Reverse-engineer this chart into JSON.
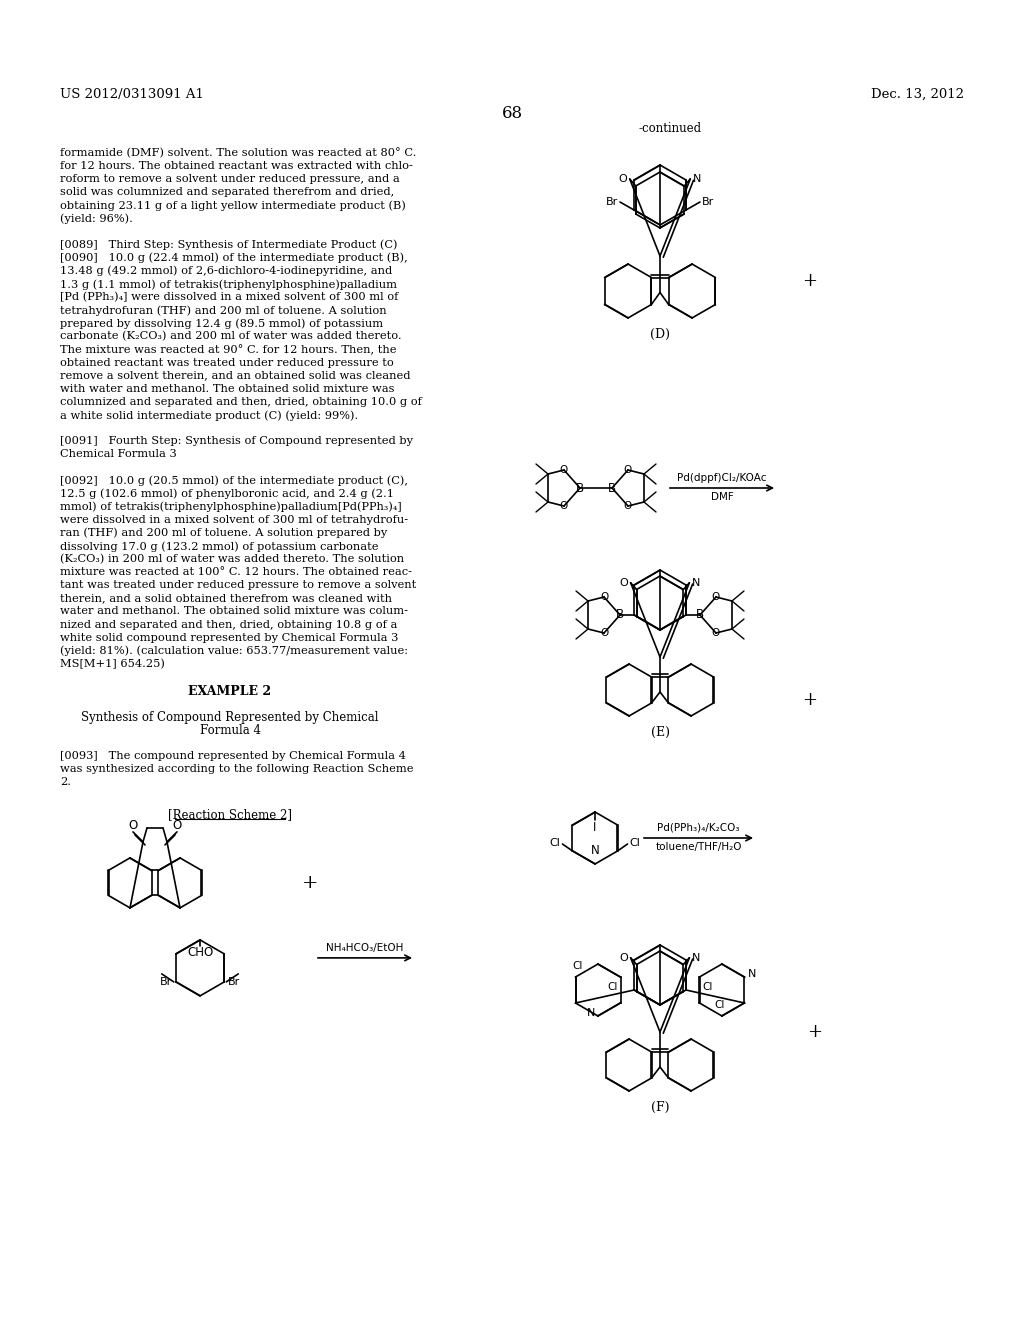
{
  "patent_number": "US 2012/0313091 A1",
  "patent_date": "Dec. 13, 2012",
  "page_number": "68",
  "left_lines": [
    "formamide (DMF) solvent. The solution was reacted at 80° C.",
    "for 12 hours. The obtained reactant was extracted with chlo-",
    "roform to remove a solvent under reduced pressure, and a",
    "solid was columnized and separated therefrom and dried,",
    "obtaining 23.11 g of a light yellow intermediate product (B)",
    "(yield: 96%).",
    "",
    "[0089]   Third Step: Synthesis of Intermediate Product (C)",
    "[0090]   10.0 g (22.4 mmol) of the intermediate product (B),",
    "13.48 g (49.2 mmol) of 2,6-dichloro-4-iodinepyridine, and",
    "1.3 g (1.1 mmol) of tetrakis(triphenylphosphine)palladium",
    "[Pd (PPh₃)₄] were dissolved in a mixed solvent of 300 ml of",
    "tetrahydrofuran (THF) and 200 ml of toluene. A solution",
    "prepared by dissolving 12.4 g (89.5 mmol) of potassium",
    "carbonate (K₂CO₃) and 200 ml of water was added thereto.",
    "The mixture was reacted at 90° C. for 12 hours. Then, the",
    "obtained reactant was treated under reduced pressure to",
    "remove a solvent therein, and an obtained solid was cleaned",
    "with water and methanol. The obtained solid mixture was",
    "columnized and separated and then, dried, obtaining 10.0 g of",
    "a white solid intermediate product (C) (yield: 99%).",
    "",
    "[0091]   Fourth Step: Synthesis of Compound represented by",
    "Chemical Formula 3",
    "",
    "[0092]   10.0 g (20.5 mmol) of the intermediate product (C),",
    "12.5 g (102.6 mmol) of phenylboronic acid, and 2.4 g (2.1",
    "mmol) of tetrakis(triphenylphosphine)palladium[Pd(PPh₃)₄]",
    "were dissolved in a mixed solvent of 300 ml of tetrahydrofu-",
    "ran (THF) and 200 ml of toluene. A solution prepared by",
    "dissolving 17.0 g (123.2 mmol) of potassium carbonate",
    "(K₂CO₃) in 200 ml of water was added thereto. The solution",
    "mixture was reacted at 100° C. 12 hours. The obtained reac-",
    "tant was treated under reduced pressure to remove a solvent",
    "therein, and a solid obtained therefrom was cleaned with",
    "water and methanol. The obtained solid mixture was colum-",
    "nized and separated and then, dried, obtaining 10.8 g of a",
    "white solid compound represented by Chemical Formula 3",
    "(yield: 81%). (calculation value: 653.77/measurement value:",
    "MS[M+1] 654.25)",
    "",
    "EXAMPLE 2",
    "",
    "Synthesis of Compound Represented by Chemical",
    "Formula 4",
    "",
    "[0093]   The compound represented by Chemical Formula 4",
    "was synthesized according to the following Reaction Scheme",
    "2."
  ],
  "bg": "#ffffff",
  "fg": "#000000"
}
